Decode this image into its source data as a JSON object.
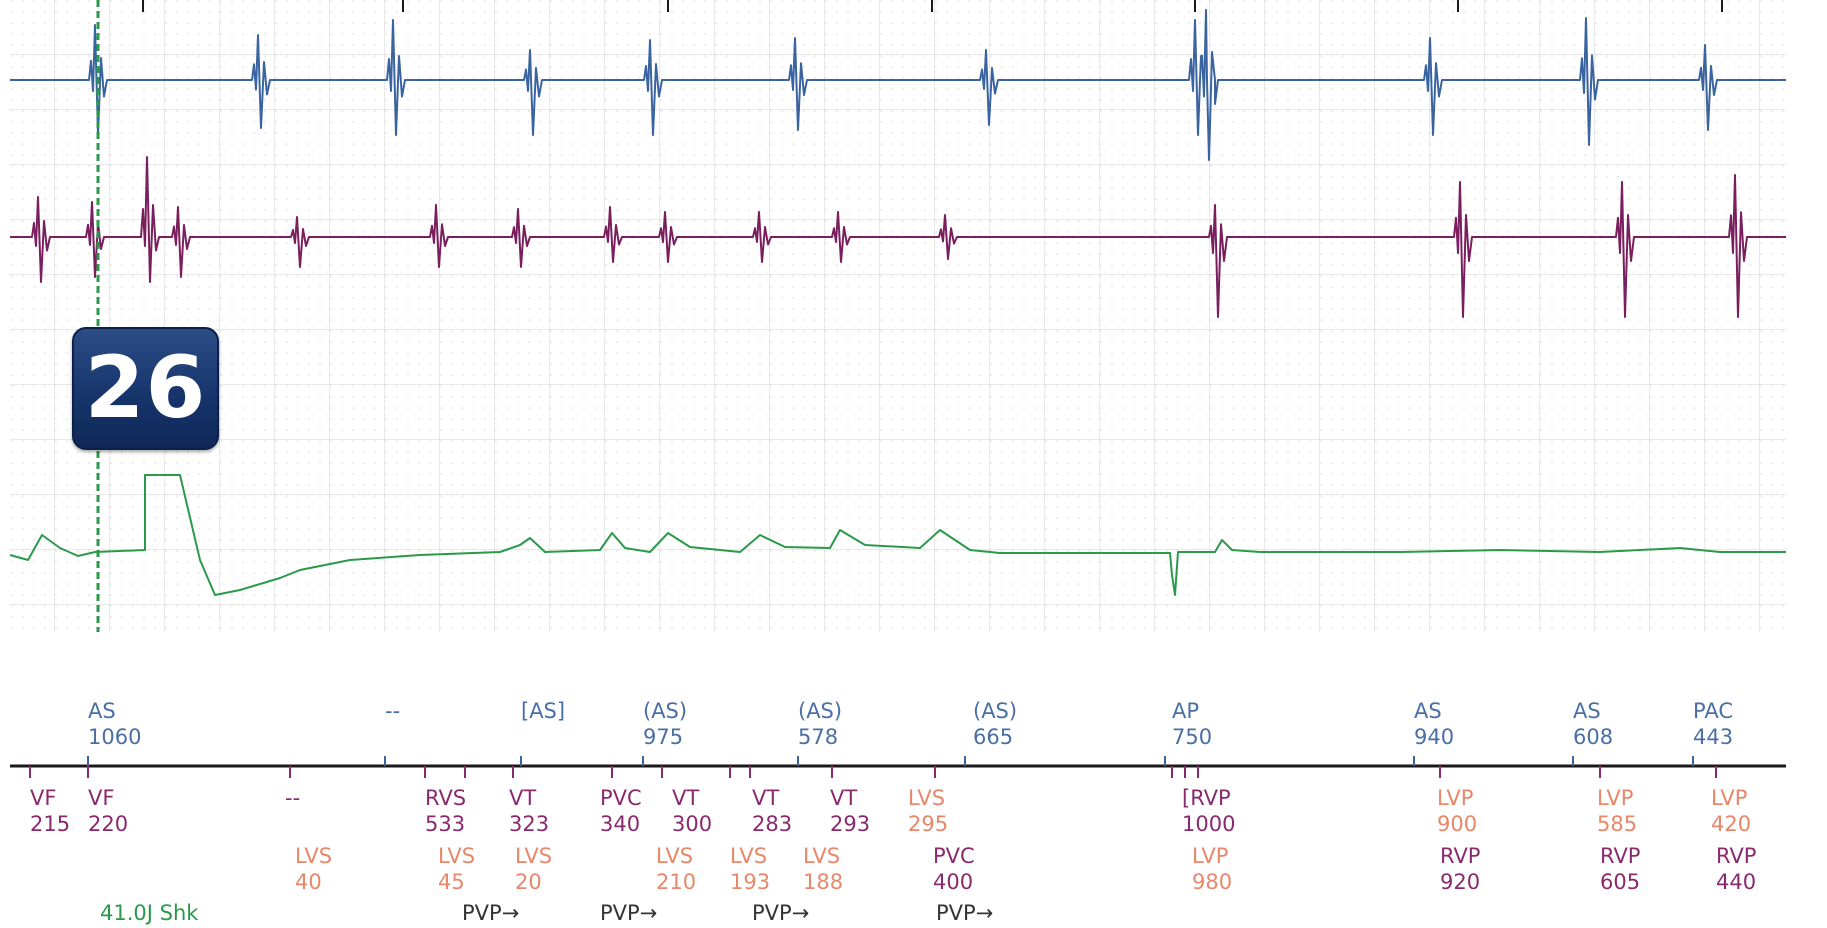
{
  "episode_badge": "26",
  "colors": {
    "atrial": "#3a64a0",
    "ventricular": "#7a1f5e",
    "lv_label": "#e8876a",
    "shock": "#2a9a4a",
    "marker_line": "#1a1a1a",
    "grid": "#d7d7d7"
  },
  "atrial_annotations": [
    {
      "label": "AS",
      "value": "1060"
    },
    {
      "label": "--",
      "value": ""
    },
    {
      "label": "[AS]",
      "value": ""
    },
    {
      "label": "(AS)",
      "value": "975"
    },
    {
      "label": "(AS)",
      "value": "578"
    },
    {
      "label": "(AS)",
      "value": "665"
    },
    {
      "label": "AP",
      "value": "750"
    },
    {
      "label": "AS",
      "value": "940"
    },
    {
      "label": "AS",
      "value": "608"
    },
    {
      "label": "PAC",
      "value": "443"
    }
  ],
  "ventricular_annotations": [
    {
      "label": "VF",
      "value": "215"
    },
    {
      "label": "VF",
      "value": "220"
    },
    {
      "label": "--",
      "value": ""
    },
    {
      "label": "RVS",
      "value": "533"
    },
    {
      "label": "VT",
      "value": "323"
    },
    {
      "label": "PVC",
      "value": "340"
    },
    {
      "label": "VT",
      "value": "300"
    },
    {
      "label": "VT",
      "value": "283"
    },
    {
      "label": "VT",
      "value": "293"
    },
    {
      "label": "LVS",
      "value": "295",
      "lv": true
    },
    {
      "label": "[RVP",
      "value": "1000"
    },
    {
      "label": "LVP",
      "value": "900",
      "lv": true
    },
    {
      "label": "LVP",
      "value": "585",
      "lv": true
    },
    {
      "label": "LVP",
      "value": "420",
      "lv": true
    }
  ],
  "second_row_annotations": [
    {
      "label": "LVS",
      "value": "40",
      "lv": true
    },
    {
      "label": "LVS",
      "value": "45",
      "lv": true
    },
    {
      "label": "LVS",
      "value": "20",
      "lv": true
    },
    {
      "label": "LVS",
      "value": "210",
      "lv": true
    },
    {
      "label": "LVS",
      "value": "193",
      "lv": true
    },
    {
      "label": "LVS",
      "value": "188",
      "lv": true
    },
    {
      "label": "PVC",
      "value": "400"
    },
    {
      "label": "LVP",
      "value": "980",
      "lv": true
    },
    {
      "label": "RVP",
      "value": "920"
    },
    {
      "label": "RVP",
      "value": "605"
    },
    {
      "label": "RVP",
      "value": "440"
    }
  ],
  "shock_label": "41.0J Shk",
  "pvp_labels": [
    "PVP→",
    "PVP→",
    "PVP→",
    "PVP→"
  ]
}
